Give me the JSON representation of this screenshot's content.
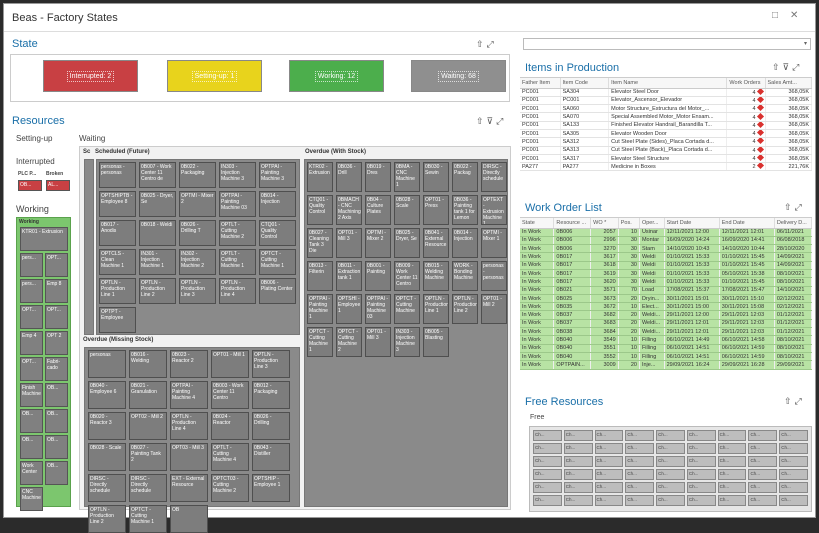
{
  "window": {
    "title": "Beas - Factory States",
    "controls": [
      "□",
      "✕"
    ]
  },
  "state_panel": {
    "title": "State",
    "bars": [
      {
        "label": "Interrupted: 2",
        "color": "#c84043"
      },
      {
        "label": "Setting-up: 1",
        "color": "#e8d31c"
      },
      {
        "label": "Working: 12",
        "color": "#4cae4c"
      },
      {
        "label": "Waiting: 68",
        "color": "#8f8f8f"
      }
    ]
  },
  "resources_panel": {
    "title": "Resources",
    "setting_up": "Setting-up",
    "interrupted": "Interrupted",
    "interrupted_cols": [
      "PLC P...",
      "Broken"
    ],
    "interrupted_cells": [
      "OB...",
      "AL..."
    ],
    "working": "Working",
    "working_header": "Working",
    "working_cells": [
      "KTR01 - Extrusion",
      "pers...",
      "OPT...",
      "pers...",
      "Emp 8",
      "OPT...",
      "OPT...",
      "Emp 4",
      "OPT 2",
      "OPT...",
      "Fabri-cado",
      "Finish Machine",
      "OB...",
      "OB...",
      "OB...",
      "OB...",
      "OB...",
      "Work Center",
      "OB...",
      "CNC Machine"
    ],
    "waiting": "Waiting",
    "sc": "Sc",
    "scheduled_future": "Scheduled (Future)",
    "overdue_with_stock": "Overdue (With Stock)",
    "overdue_missing_stock": "Overdue (Missing Stock)",
    "tiles_future": [
      "personas - personas",
      "0B007 - Work Center 11 Centro de",
      "0B022 - Packaging",
      "IN303 - Injection Machine 3",
      "OPTPAI - Painting Machine 3",
      "OPTSHIPTB - Employee 8",
      "0B025 - Dryer, Se",
      "OPTMI - Mixer 2",
      "OPTPAI - Painting Machine 03",
      "0B014 - Injection",
      "0B017 - Anodis",
      "0B018 - Weldi",
      "0B026 - Drilling T",
      "OPTLT - Cutting Machine 2",
      "CTQ01 - Quality Control",
      "OPTCLS - Clean Machine 1",
      "IN301 - Injection Machine 1",
      "IN302 - Injection Machine 2",
      "OPTLT - Cutting Machine 1",
      "OPTCT - Cutting Machine 1",
      "OPTLN - Production Line 1",
      "OPTLN - Production Line 2",
      "OPTLN - Production Line 3",
      "OPTLN - Production Line 4",
      "0B006 - Plating Center",
      "OPTPT - Employee"
    ],
    "tiles_stock": [
      "KTR02 - Extrusion",
      "0B036 - Drill",
      "0B019 - Dres",
      "0BMA - CNC Machine 1",
      "0B030 - Sewin",
      "0B022 - Packag",
      "DIRSC - Directly schedule",
      "CTQ01 - Quality Control",
      "0BMACH - CNC Machining 2 Axis",
      "0B04 - Culture Plates",
      "0B028 - Scale",
      "OPT01 - Press",
      "0B036 - Painting tank 1 for Lemon",
      "OPTEXT - Extrusion Machine 1",
      "0B027 - Cleaning Tank 3 Die",
      "OPT01 - Mill 3",
      "OPTMI - Mixer 2",
      "0B025 - Dryer, Se",
      "0B041 - External Resource",
      "0B014 - Injection",
      "OPTMI - Mixer 1",
      "0B013 - Filterin",
      "0B011 - Extraction tank 1",
      "0B001 - Painting",
      "0B009 - Work Center 11 Centro",
      "0B015 - Welding Machine",
      "WORK - Bonding Machine",
      "personas - personas",
      "OPTPAI - Painting Machine 1",
      "OPTSHI - Employee 1",
      "OPTPAI - Painting Machine 03",
      "OPTCT - Cutting Machine",
      "OPTLN - Production Line 1",
      "OPTLN - Production Line 2",
      "OPT01 - Mill 2",
      "OPTCT - Cutting Machine 1",
      "OPTCT - Cutting Machine 2",
      "OPT01 - Mill 3",
      "IN303 - Injection Machine 3",
      "0B005 - Blasting"
    ],
    "tiles_missing": [
      "personas",
      "0B016 - Welding",
      "0B023 - Reactor 2",
      "OPT01 - Mill 1",
      "OPTLN - Production Line 3",
      "0B040 - Employee 6",
      "0B021 - Granulation",
      "OPTPAI - Painting Machine 4",
      "0B003 - Work Center 11 Centro",
      "0B012 - Packaging",
      "0B020 - Reactor 3",
      "OPT02 - Mill 2",
      "OPTLN - Production Line 4",
      "0B024 - Reactor",
      "0B026 - Drilling",
      "0B028 - Scale",
      "0B027 - Painting Tank 2",
      "OPT03 - Mill 3",
      "OPTLT - Cutting Machine 4",
      "0B043 - Distiller",
      "DIRSC - Directly schedule",
      "DIRSC - Directly schedule",
      "EXT - External Resource",
      "OPTCT03 - Cutting Machine 2",
      "OPTSHIP - Employee 1",
      "OPTLN - Production Line 2",
      "OPTCT - Cutting Machine 1",
      "OB"
    ]
  },
  "items_panel": {
    "title": "Items in Production",
    "columns": [
      "Father Item",
      "Item Code",
      "Item Name",
      "Work Orders",
      "Sales Amt..."
    ],
    "rows": [
      [
        "PC001",
        "SA304",
        "Elevator Steel Door",
        "4",
        "368,05K"
      ],
      [
        "PC001",
        "PC001",
        "Elevator_Ascensor_Elevador",
        "4",
        "368,05K"
      ],
      [
        "PC001",
        "SA060",
        "Motor Structure_Estructura del Motor_...",
        "4",
        "368,05K"
      ],
      [
        "PC001",
        "SA070",
        "Special Assembled Motor_Motor Ensam...",
        "4",
        "368,05K"
      ],
      [
        "PC001",
        "SA133",
        "Finished Elevator Handrail_Barandilla T...",
        "4",
        "368,05K"
      ],
      [
        "PC001",
        "SA305",
        "Elevator Wooden Door",
        "4",
        "368,05K"
      ],
      [
        "PC001",
        "SA312",
        "Cut Steel Plate (Sides)_Placa Cortada d...",
        "4",
        "368,05K"
      ],
      [
        "PC001",
        "SA313",
        "Cut Steel Plate (Back)_Placa Cortada d...",
        "4",
        "368,05K"
      ],
      [
        "PC001",
        "SA317",
        "Elevator Steel Structure",
        "4",
        "368,05K"
      ],
      [
        "PA277",
        "PA277",
        "Medicine in Boxes",
        "2",
        "221,76K"
      ]
    ]
  },
  "work_orders_panel": {
    "title": "Work Order List",
    "columns": [
      "State",
      "Resource ...",
      "WO *",
      "Pos.",
      "Oper...",
      "Start Date",
      "End Date",
      "Delivery D..."
    ],
    "rows": [
      [
        "In Work",
        "0B006",
        "2057",
        "10",
        "Usinar",
        "12/11/2021 12:00",
        "12/11/2021 12:01",
        "06/11/2021"
      ],
      [
        "In Work",
        "0B006",
        "2996",
        "30",
        "Montar",
        "16/09/2020 14:24",
        "16/09/2020 14:41",
        "06/08/2018"
      ],
      [
        "In Work",
        "0B006",
        "3270",
        "30",
        "Stam",
        "14/10/2020 10:43",
        "14/10/2020 10:44",
        "28/10/2020"
      ],
      [
        "In Work",
        "0B017",
        "3617",
        "30",
        "Weldi",
        "01/10/2021 15:33",
        "01/10/2021 15:45",
        "14/09/2021"
      ],
      [
        "In Work",
        "0B017",
        "3618",
        "30",
        "Weldi",
        "01/10/2021 15:33",
        "01/10/2021 15:45",
        "14/09/2021"
      ],
      [
        "In Work",
        "0B017",
        "3619",
        "30",
        "Weldi",
        "01/10/2021 15:33",
        "05/10/2021 15:38",
        "08/10/2021"
      ],
      [
        "In Work",
        "0B017",
        "3620",
        "30",
        "Weldi",
        "01/10/2021 15:33",
        "01/10/2021 15:45",
        "08/10/2021"
      ],
      [
        "In Work",
        "0B021",
        "3571",
        "70",
        "Load",
        "17/08/2021 15:37",
        "17/08/2021 15:47",
        "14/10/2021"
      ],
      [
        "In Work",
        "0B025",
        "3673",
        "20",
        "Dryin...",
        "30/11/2021 15:01",
        "30/11/2021 15:10",
        "02/12/2021"
      ],
      [
        "In Work",
        "0B035",
        "3672",
        "10",
        "Elect...",
        "30/11/2021 15:00",
        "30/11/2021 15:08",
        "02/12/2021"
      ],
      [
        "In Work",
        "0B037",
        "3682",
        "20",
        "Weldi...",
        "29/11/2021 12:00",
        "29/11/2021 12:03",
        "01/12/2021"
      ],
      [
        "In Work",
        "0B037",
        "3683",
        "20",
        "Weldi...",
        "29/11/2021 12:01",
        "29/11/2021 12:03",
        "01/12/2021"
      ],
      [
        "In Work",
        "0B038",
        "3684",
        "20",
        "Weldi...",
        "29/11/2021 12:01",
        "29/11/2021 12:03",
        "01/12/2021"
      ],
      [
        "In Work",
        "0B040",
        "3549",
        "10",
        "Filling",
        "06/10/2021 14:49",
        "06/10/2021 14:58",
        "08/10/2021"
      ],
      [
        "In Work",
        "0B040",
        "3551",
        "10",
        "Filling",
        "06/10/2021 14:51",
        "06/10/2021 14:59",
        "08/10/2021"
      ],
      [
        "In Work",
        "0B040",
        "3552",
        "10",
        "Filling",
        "06/10/2021 14:51",
        "06/10/2021 14:59",
        "08/10/2021"
      ],
      [
        "In Work",
        "OPTPAIN...",
        "3009",
        "20",
        "Inje...",
        "29/09/2021 16:24",
        "29/09/2021 16:28",
        "29/09/2021"
      ]
    ]
  },
  "free_panel": {
    "title": "Free Resources",
    "free_label": "Free",
    "cells": [
      "Ch...",
      "Ch...",
      "Ch...",
      "Ch...",
      "Ch...",
      "Ch...",
      "Ch...",
      "Ch...",
      "Ch...",
      "Ch...",
      "Ch...",
      "Ch...",
      "Ch...",
      "Ch...",
      "Ch...",
      "Ch...",
      "Ch...",
      "Ch...",
      "Ch...",
      "Ch...",
      "Ch...",
      "Ch...",
      "Ch...",
      "Ch...",
      "Ch...",
      "Ch...",
      "Ch...",
      "Ch...",
      "Ch...",
      "Ch...",
      "Ch...",
      "Ch...",
      "Ch...",
      "Ch...",
      "Ch...",
      "Ch...",
      "Ch...",
      "Ch...",
      "Ch...",
      "Ch...",
      "Ch...",
      "Ch...",
      "Ch...",
      "Ch...",
      "Ch...",
      "Ch...",
      "Ch...",
      "Ch...",
      "Ch...",
      "Ch...",
      "Ch...",
      "Ch...",
      "Ch...",
      "Ch..."
    ]
  }
}
